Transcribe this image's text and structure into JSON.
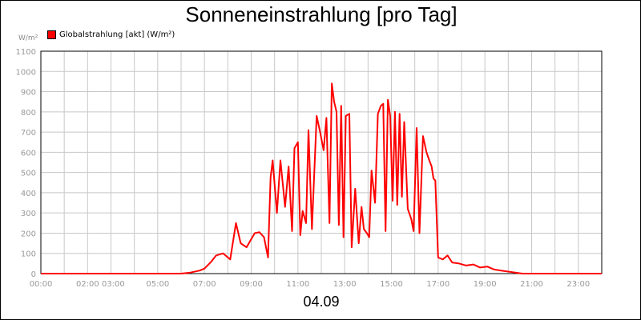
{
  "chart_data": {
    "type": "line",
    "title": "Sonneneinstrahlung [pro Tag]",
    "ylabel": "W/m²",
    "xlabel": "04.09",
    "ylim": [
      0,
      1100
    ],
    "y_ticks": [
      0,
      100,
      200,
      300,
      400,
      500,
      600,
      700,
      800,
      900,
      1000,
      1100
    ],
    "x_range_hours": [
      0,
      24
    ],
    "x_ticks": [
      {
        "hour": 0,
        "label": "00:00"
      },
      {
        "hour": 2.55,
        "label": "02:00 03:00"
      },
      {
        "hour": 5,
        "label": "05:00"
      },
      {
        "hour": 7,
        "label": "07:00"
      },
      {
        "hour": 9,
        "label": "09:00"
      },
      {
        "hour": 11,
        "label": "11:00"
      },
      {
        "hour": 13,
        "label": "13:00"
      },
      {
        "hour": 15,
        "label": "15:00"
      },
      {
        "hour": 17,
        "label": "17:00"
      },
      {
        "hour": 19,
        "label": "19:00"
      },
      {
        "hour": 21,
        "label": "21:00"
      },
      {
        "hour": 23,
        "label": "23:00"
      }
    ],
    "grid": true,
    "legend_position": "top-left",
    "series": [
      {
        "name": "Globalstrahlung [akt] (W/m²)",
        "color": "#ff0000",
        "x": [
          0.0,
          6.0,
          6.4,
          6.8,
          7.0,
          7.3,
          7.5,
          7.8,
          8.1,
          8.35,
          8.55,
          8.8,
          8.95,
          9.15,
          9.35,
          9.55,
          9.72,
          9.83,
          9.92,
          10.1,
          10.25,
          10.45,
          10.6,
          10.75,
          10.85,
          11.0,
          11.1,
          11.2,
          11.35,
          11.45,
          11.6,
          11.8,
          11.95,
          12.1,
          12.22,
          12.35,
          12.45,
          12.55,
          12.65,
          12.75,
          12.85,
          12.95,
          13.05,
          13.2,
          13.3,
          13.45,
          13.6,
          13.72,
          13.82,
          13.95,
          14.05,
          14.15,
          14.3,
          14.42,
          14.55,
          14.65,
          14.75,
          14.85,
          14.95,
          15.05,
          15.15,
          15.25,
          15.35,
          15.45,
          15.55,
          15.7,
          15.85,
          15.95,
          16.08,
          16.2,
          16.35,
          16.5,
          16.62,
          16.72,
          16.8,
          16.88,
          17.0,
          17.2,
          17.4,
          17.6,
          17.9,
          18.2,
          18.5,
          18.8,
          19.1,
          19.4,
          19.7,
          20.0,
          20.3,
          20.6,
          24.0
        ],
        "y": [
          0,
          0,
          5,
          15,
          25,
          60,
          90,
          100,
          70,
          250,
          150,
          130,
          160,
          200,
          205,
          180,
          80,
          475,
          560,
          300,
          560,
          330,
          530,
          210,
          620,
          650,
          190,
          310,
          250,
          710,
          220,
          780,
          700,
          610,
          770,
          250,
          940,
          850,
          800,
          240,
          830,
          180,
          780,
          790,
          130,
          420,
          150,
          330,
          220,
          200,
          180,
          510,
          350,
          790,
          830,
          840,
          210,
          860,
          780,
          360,
          800,
          340,
          790,
          380,
          750,
          320,
          270,
          210,
          720,
          200,
          680,
          600,
          560,
          530,
          470,
          460,
          80,
          70,
          90,
          55,
          50,
          40,
          45,
          30,
          35,
          20,
          15,
          10,
          5,
          0,
          0
        ]
      }
    ]
  }
}
